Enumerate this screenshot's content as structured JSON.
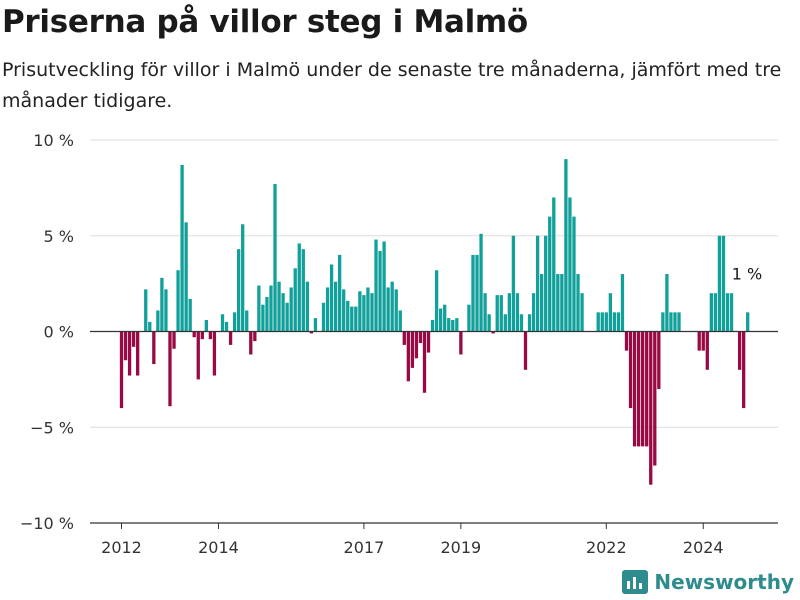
{
  "title": "Priserna på villor steg i Malmö",
  "subtitle": "Prisutveckling för villor i Malmö under de senaste tre månaderna, jämfört med tre månader tidigare.",
  "brand": "Newsworthy",
  "colors": {
    "positive": "#12a09a",
    "negative": "#990a45",
    "grid": "#dddddd",
    "zero": "#333333",
    "brand": "#2e8b8e"
  },
  "chart_data": {
    "type": "bar",
    "x_unit": "month",
    "start": "2012-01",
    "ylim": [
      -10,
      10
    ],
    "yticks": [
      10,
      5,
      0,
      -5,
      -10
    ],
    "ytick_labels": [
      "10 %",
      "5 %",
      "0 %",
      "−5 %",
      "−10 %"
    ],
    "xtick_labels": [
      "2012",
      "2014",
      "2017",
      "2019",
      "2022",
      "2024"
    ],
    "xtick_index": [
      0,
      24,
      60,
      84,
      120,
      144
    ],
    "last_value_label": "1 %",
    "values": [
      -4.0,
      -1.5,
      -2.3,
      -0.8,
      -2.3,
      0.0,
      2.2,
      0.5,
      -1.7,
      1.1,
      2.8,
      2.2,
      -3.9,
      -0.9,
      3.2,
      8.7,
      5.7,
      1.7,
      -0.3,
      -2.5,
      -0.4,
      0.6,
      -0.4,
      -2.3,
      0.0,
      0.9,
      0.5,
      -0.7,
      1.0,
      4.3,
      5.6,
      1.1,
      -1.2,
      -0.5,
      2.4,
      1.4,
      1.8,
      2.4,
      7.7,
      2.6,
      2.0,
      1.5,
      2.3,
      3.3,
      4.6,
      4.3,
      2.6,
      -0.1,
      0.7,
      0.0,
      1.5,
      2.3,
      3.5,
      2.6,
      4.0,
      2.2,
      1.6,
      1.3,
      1.3,
      2.1,
      1.9,
      2.3,
      2.0,
      4.8,
      4.2,
      4.7,
      2.3,
      2.6,
      2.2,
      1.1,
      -0.7,
      -2.6,
      -1.9,
      -1.4,
      -0.6,
      -3.2,
      -1.1,
      0.6,
      3.2,
      1.2,
      1.4,
      0.7,
      0.6,
      0.7,
      -1.2,
      0.0,
      1.4,
      4.0,
      4.0,
      5.1,
      2.0,
      0.9,
      -0.1,
      1.9,
      1.9,
      0.9,
      2.0,
      5.0,
      2.0,
      0.9,
      -2.0,
      0.9,
      2.0,
      5.0,
      3.0,
      5.0,
      6.0,
      7.0,
      3.0,
      3.0,
      9.0,
      7.0,
      6.0,
      3.0,
      2.0,
      0.0,
      0.0,
      0.0,
      1.0,
      1.0,
      1.0,
      2.0,
      1.0,
      1.0,
      3.0,
      -1.0,
      -4.0,
      -6.0,
      -6.0,
      -6.0,
      -6.0,
      -8.0,
      -7.0,
      -3.0,
      1.0,
      3.0,
      1.0,
      1.0,
      1.0,
      0.0,
      0.0,
      0.0,
      0.0,
      -1.0,
      -1.0,
      -2.0,
      2.0,
      2.0,
      5.0,
      5.0,
      2.0,
      2.0,
      0.0,
      -2.0,
      -4.0,
      1.0
    ]
  }
}
